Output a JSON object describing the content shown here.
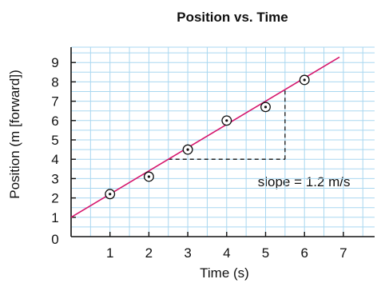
{
  "chart_data": {
    "type": "scatter",
    "title": "Position vs. Time",
    "xlabel": "Time (s)",
    "ylabel": "Position (m [forward])",
    "xlim": [
      0,
      7.8
    ],
    "ylim": [
      0,
      9.6
    ],
    "x_ticks": [
      "1",
      "2",
      "3",
      "4",
      "5",
      "6",
      "7"
    ],
    "y_ticks": [
      "1",
      "2",
      "3",
      "4",
      "5",
      "6",
      "7",
      "8",
      "9"
    ],
    "origin_label": "0",
    "grid": true,
    "grid_step": 0.5,
    "points": {
      "x": [
        1,
        2,
        3,
        4,
        5,
        6
      ],
      "y": [
        2.2,
        3.1,
        4.5,
        6.0,
        6.7,
        8.1
      ]
    },
    "fit_line": {
      "slope": 1.2,
      "intercept": 1.0,
      "x_range": [
        0,
        6.9
      ]
    },
    "slope_triangle": {
      "x_start": 2.5,
      "x_end": 5.5,
      "y_low": 4.0,
      "y_high": 7.6
    },
    "annotation": "slope = 1.2 m/s",
    "annotation_anchor": {
      "x": 4.8,
      "y": 2.6
    },
    "colors": {
      "grid": "#a9d7f0",
      "line": "#d6186e",
      "axis": "#111111",
      "point": "#111111",
      "dash": "#111111"
    }
  }
}
